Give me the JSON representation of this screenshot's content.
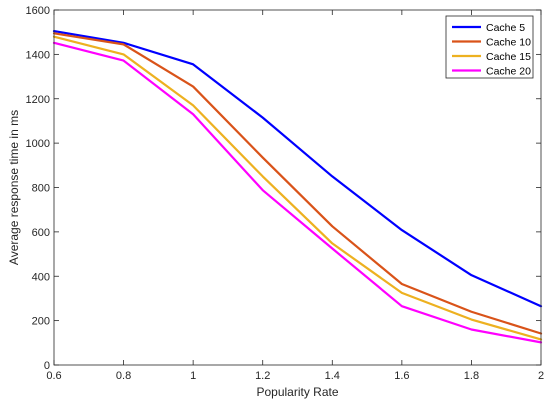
{
  "chart_data": {
    "type": "line",
    "xlabel": "Popularity Rate",
    "ylabel": "Average response time in ms",
    "xlim": [
      0.6,
      2
    ],
    "ylim": [
      0,
      1600
    ],
    "x_ticks": [
      "0.6",
      "0.8",
      "1",
      "1.2",
      "1.4",
      "1.6",
      "1.8",
      "2"
    ],
    "y_ticks": [
      "0",
      "200",
      "400",
      "600",
      "800",
      "1000",
      "1200",
      "1400",
      "1600"
    ],
    "x": [
      0.6,
      0.8,
      1.0,
      1.2,
      1.4,
      1.6,
      1.8,
      2.0
    ],
    "grid": false,
    "legend_position": "top-right",
    "series": [
      {
        "name": "Cache 5",
        "color": "#0000ff",
        "values": [
          1505,
          1452,
          1355,
          1115,
          850,
          608,
          405,
          265
        ]
      },
      {
        "name": "Cache 10",
        "color": "#d95319",
        "values": [
          1495,
          1445,
          1255,
          935,
          625,
          365,
          240,
          142
        ]
      },
      {
        "name": "Cache 15",
        "color": "#edb120",
        "values": [
          1480,
          1400,
          1170,
          850,
          548,
          325,
          205,
          115
        ]
      },
      {
        "name": "Cache 20",
        "color": "#ff00ff",
        "values": [
          1452,
          1372,
          1130,
          788,
          525,
          265,
          160,
          102
        ]
      }
    ]
  }
}
